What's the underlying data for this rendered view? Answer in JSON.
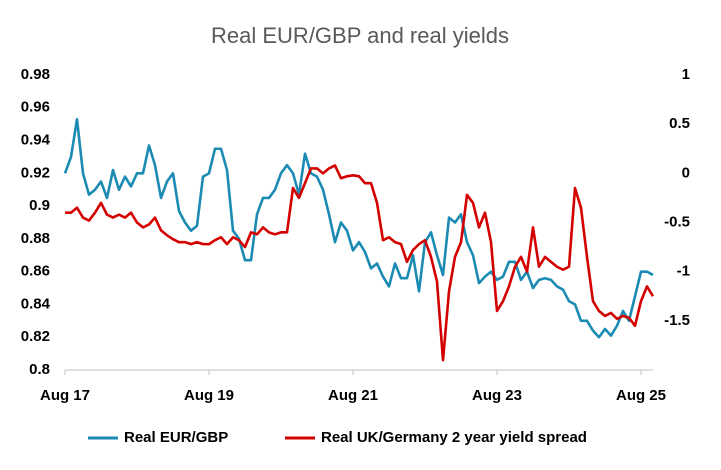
{
  "chart_data": {
    "type": "line",
    "title": "Real EUR/GBP and real yields",
    "categories": [
      "Aug 17",
      null,
      null,
      null,
      null,
      null,
      null,
      null,
      null,
      null,
      null,
      null,
      null,
      null,
      null,
      null,
      null,
      null,
      null,
      null,
      null,
      null,
      null,
      null,
      "Aug 19",
      null,
      null,
      null,
      null,
      null,
      null,
      null,
      null,
      null,
      null,
      null,
      null,
      null,
      null,
      null,
      null,
      null,
      null,
      null,
      null,
      null,
      null,
      null,
      "Aug 21",
      null,
      null,
      null,
      null,
      null,
      null,
      null,
      null,
      null,
      null,
      null,
      null,
      null,
      null,
      null,
      null,
      null,
      null,
      null,
      null,
      null,
      null,
      null,
      "Aug 23",
      null,
      null,
      null,
      null,
      null,
      null,
      null,
      null,
      null,
      null,
      null,
      null,
      null,
      null,
      null,
      null,
      null,
      null,
      null,
      null,
      null,
      null,
      null,
      "Aug 25",
      null,
      null
    ],
    "series": [
      {
        "name": "Real EUR/GBP",
        "color": "#1b8bb3",
        "values": [
          0.92,
          0.93,
          0.953,
          0.92,
          0.907,
          0.91,
          0.915,
          0.905,
          0.922,
          0.91,
          0.918,
          0.912,
          0.92,
          0.92,
          0.937,
          0.925,
          0.905,
          0.915,
          0.92,
          0.897,
          0.89,
          0.885,
          0.888,
          0.918,
          0.92,
          0.935,
          0.935,
          0.922,
          0.885,
          0.88,
          0.867,
          0.867,
          0.895,
          0.905,
          0.905,
          0.91,
          0.92,
          0.925,
          0.92,
          0.907,
          0.932,
          0.92,
          0.918,
          0.91,
          0.895,
          0.878,
          0.89,
          0.885,
          0.873,
          0.878,
          0.872,
          0.862,
          0.865,
          0.857,
          0.851,
          0.865,
          0.856,
          0.856,
          0.87,
          0.848,
          0.878,
          0.884,
          0.87,
          0.858,
          0.893,
          0.89,
          0.895,
          0.878,
          0.87,
          0.853,
          0.857,
          0.86,
          0.855,
          0.857,
          0.866,
          0.866,
          0.855,
          0.86,
          0.85,
          0.855,
          0.856,
          0.855,
          0.851,
          0.849,
          0.842,
          0.84,
          0.83,
          0.83,
          0.824,
          0.82,
          0.825,
          0.821,
          0.827,
          0.836,
          0.83,
          0.845,
          0.86,
          0.86,
          0.858
        ]
      },
      {
        "name": "Real UK/Germany 2 year yield spread",
        "color": "#d40000",
        "axis": "y2",
        "values": [
          -0.4,
          -0.4,
          -0.35,
          -0.45,
          -0.48,
          -0.4,
          -0.3,
          -0.42,
          -0.45,
          -0.42,
          -0.45,
          -0.4,
          -0.5,
          -0.55,
          -0.52,
          -0.45,
          -0.58,
          -0.63,
          -0.67,
          -0.7,
          -0.7,
          -0.72,
          -0.7,
          -0.72,
          -0.72,
          -0.68,
          -0.65,
          -0.72,
          -0.65,
          -0.68,
          -0.75,
          -0.6,
          -0.62,
          -0.55,
          -0.6,
          -0.62,
          -0.6,
          -0.6,
          -0.15,
          -0.25,
          -0.1,
          0.05,
          0.05,
          0.0,
          0.05,
          0.08,
          -0.05,
          -0.03,
          -0.02,
          -0.03,
          -0.1,
          -0.1,
          -0.3,
          -0.68,
          -0.65,
          -0.7,
          -0.72,
          -0.9,
          -0.78,
          -0.72,
          -0.68,
          -0.85,
          -1.1,
          -1.9,
          -1.2,
          -0.85,
          -0.7,
          -0.22,
          -0.3,
          -0.55,
          -0.4,
          -0.7,
          -1.4,
          -1.3,
          -1.15,
          -0.95,
          -0.85,
          -1.0,
          -0.55,
          -0.95,
          -0.85,
          -0.9,
          -0.95,
          -0.98,
          -0.95,
          -0.15,
          -0.35,
          -0.85,
          -1.3,
          -1.4,
          -1.45,
          -1.42,
          -1.48,
          -1.45,
          -1.47,
          -1.55,
          -1.3,
          -1.15,
          -1.25
        ]
      }
    ],
    "ylim": [
      0.8,
      0.98
    ],
    "yticks": [
      {
        "value": 0.8,
        "label": "0.8"
      },
      0.82,
      0.84,
      0.86,
      0.88,
      {
        "value": 0.9,
        "label": "0.9"
      },
      0.92,
      0.94,
      0.96,
      0.98
    ],
    "y2lim": [
      -2,
      1
    ],
    "y2ticks": [
      1,
      0.5,
      0,
      -0.5,
      -1,
      -1.5
    ],
    "legend": "bottom"
  }
}
